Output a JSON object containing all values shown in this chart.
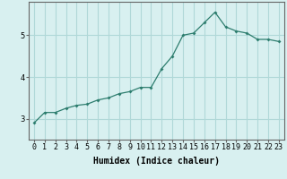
{
  "xlabel": "Humidex (Indice chaleur)",
  "ylabel": "",
  "x": [
    0,
    1,
    2,
    3,
    4,
    5,
    6,
    7,
    8,
    9,
    10,
    11,
    12,
    13,
    14,
    15,
    16,
    17,
    18,
    19,
    20,
    21,
    22,
    23
  ],
  "y": [
    2.9,
    3.15,
    3.15,
    3.25,
    3.32,
    3.35,
    3.45,
    3.5,
    3.6,
    3.65,
    3.75,
    3.75,
    4.2,
    4.5,
    5.0,
    5.05,
    5.3,
    5.55,
    5.2,
    5.1,
    5.05,
    4.9,
    4.9,
    4.85
  ],
  "line_color": "#2d7d6e",
  "marker": "D",
  "marker_size": 2.0,
  "background_color": "#d8f0f0",
  "grid_color": "#b0d8d8",
  "ylim": [
    2.5,
    5.8
  ],
  "yticks": [
    3,
    4,
    5
  ],
  "tick_fontsize": 6,
  "label_fontsize": 7
}
